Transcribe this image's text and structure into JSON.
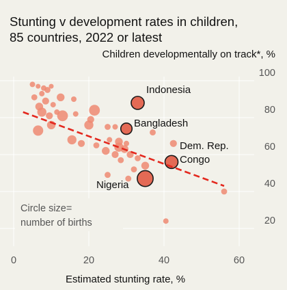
{
  "chart_data": {
    "type": "scatter",
    "title": "Stunting v development rates in children,",
    "subtitle": "85 countries, 2022 or latest",
    "ylabel": "Children developmentally on track*, %",
    "xlabel": "Estimated stunting rate, %",
    "note_lines": [
      "Circle size=",
      "number of births"
    ],
    "xlim": [
      0,
      60
    ],
    "ylim": [
      20,
      100
    ],
    "x_ticks": [
      0,
      20,
      40,
      60
    ],
    "y_ticks": [
      20,
      40,
      60,
      80,
      100
    ],
    "grid": true,
    "size_legend": "bottom-left",
    "colors": {
      "bubble": "#ef8a72",
      "labelled_bubble": "#e46a55",
      "trend": "#e3281e",
      "background": "#f2f1ea"
    },
    "trend_line": {
      "x": [
        2.5,
        56
      ],
      "y": [
        83,
        43
      ]
    },
    "points": [
      {
        "x": 5.0,
        "y": 98,
        "s": 1.5
      },
      {
        "x": 6.5,
        "y": 97,
        "s": 1
      },
      {
        "x": 8.0,
        "y": 96,
        "s": 1.5
      },
      {
        "x": 9.0,
        "y": 95,
        "s": 2
      },
      {
        "x": 10.0,
        "y": 97,
        "s": 1
      },
      {
        "x": 7.5,
        "y": 93,
        "s": 1.5
      },
      {
        "x": 5.5,
        "y": 91,
        "s": 2
      },
      {
        "x": 8.5,
        "y": 89,
        "s": 3
      },
      {
        "x": 12.5,
        "y": 91,
        "s": 4
      },
      {
        "x": 16.0,
        "y": 90,
        "s": 1.5
      },
      {
        "x": 6.8,
        "y": 86,
        "s": 4
      },
      {
        "x": 10.5,
        "y": 87,
        "s": 1.5
      },
      {
        "x": 7.5,
        "y": 83,
        "s": 6
      },
      {
        "x": 9.5,
        "y": 81,
        "s": 3
      },
      {
        "x": 11.5,
        "y": 83,
        "s": 1.5
      },
      {
        "x": 13.0,
        "y": 81,
        "s": 9
      },
      {
        "x": 16.5,
        "y": 82,
        "s": 1.5
      },
      {
        "x": 21.5,
        "y": 84,
        "s": 9
      },
      {
        "x": 20.5,
        "y": 79,
        "s": 3
      },
      {
        "x": 20.0,
        "y": 76,
        "s": 6
      },
      {
        "x": 10.0,
        "y": 76,
        "s": 5
      },
      {
        "x": 6.5,
        "y": 73,
        "s": 8
      },
      {
        "x": 25.0,
        "y": 75,
        "s": 2
      },
      {
        "x": 27.0,
        "y": 75,
        "s": 1.5
      },
      {
        "x": 15.5,
        "y": 68,
        "s": 6
      },
      {
        "x": 18.0,
        "y": 66,
        "s": 3
      },
      {
        "x": 22.0,
        "y": 65,
        "s": 2
      },
      {
        "x": 24.5,
        "y": 62,
        "s": 4
      },
      {
        "x": 25.5,
        "y": 68,
        "s": 1.5
      },
      {
        "x": 28.0,
        "y": 67,
        "s": 4
      },
      {
        "x": 30.0,
        "y": 66,
        "s": 1.5
      },
      {
        "x": 28.0,
        "y": 64,
        "s": 6
      },
      {
        "x": 29.5,
        "y": 63,
        "s": 4
      },
      {
        "x": 27.0,
        "y": 60,
        "s": 3
      },
      {
        "x": 31.0,
        "y": 60,
        "s": 3
      },
      {
        "x": 28.5,
        "y": 57,
        "s": 2
      },
      {
        "x": 33.0,
        "y": 58,
        "s": 2
      },
      {
        "x": 35.0,
        "y": 54,
        "s": 4
      },
      {
        "x": 32.0,
        "y": 52,
        "s": 2
      },
      {
        "x": 25.0,
        "y": 49,
        "s": 2
      },
      {
        "x": 30.5,
        "y": 47,
        "s": 2
      },
      {
        "x": 34.0,
        "y": 48,
        "s": 2
      },
      {
        "x": 37.0,
        "y": 72,
        "s": 2
      },
      {
        "x": 40.5,
        "y": 24,
        "s": 1.5
      },
      {
        "x": 56.0,
        "y": 40,
        "s": 2
      },
      {
        "x": 42.5,
        "y": 66,
        "s": 3
      }
    ],
    "labelled_points": [
      {
        "label": "Indonesia",
        "x": 33.0,
        "y": 88,
        "s": 14
      },
      {
        "label": "Bangladesh",
        "x": 30.0,
        "y": 74,
        "s": 10
      },
      {
        "label": "Dem. Rep. Congo",
        "x": 42.0,
        "y": 56,
        "s": 14
      },
      {
        "label": "Nigeria",
        "x": 35.0,
        "y": 47,
        "s": 22
      }
    ],
    "annotation_lines": {
      "indonesia": "Indonesia",
      "bangladesh": "Bangladesh",
      "congo_line1": "Dem. Rep.",
      "congo_line2": "Congo",
      "nigeria": "Nigeria"
    }
  }
}
